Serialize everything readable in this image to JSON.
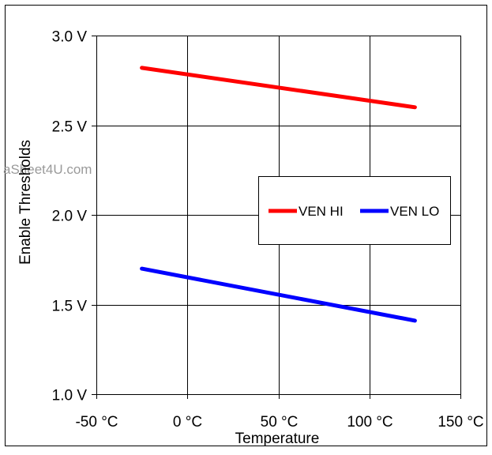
{
  "watermark": "aSheet4U.com",
  "chart_data": {
    "type": "line",
    "xlabel": "Temperature",
    "ylabel": "Enable Thresholds",
    "xlim": [
      -50,
      150
    ],
    "ylim": [
      1.0,
      3.0
    ],
    "x_ticks": [
      -50,
      0,
      50,
      100,
      150
    ],
    "x_tick_labels": [
      "-50 °C",
      "0 °C",
      "50 °C",
      "100 °C",
      "150 °C"
    ],
    "y_ticks": [
      1.0,
      1.5,
      2.0,
      2.5,
      3.0
    ],
    "y_tick_labels": [
      "1.0 V",
      "1.5 V",
      "2.0 V",
      "2.5 V",
      "3.0 V"
    ],
    "grid": true,
    "legend_position": "right-center",
    "series": [
      {
        "name": "VEN HI",
        "color": "#ff0000",
        "x": [
          -25,
          125
        ],
        "y": [
          2.82,
          2.6
        ]
      },
      {
        "name": "VEN LO",
        "color": "#0000ff",
        "x": [
          -25,
          125
        ],
        "y": [
          1.7,
          1.41
        ]
      }
    ]
  }
}
